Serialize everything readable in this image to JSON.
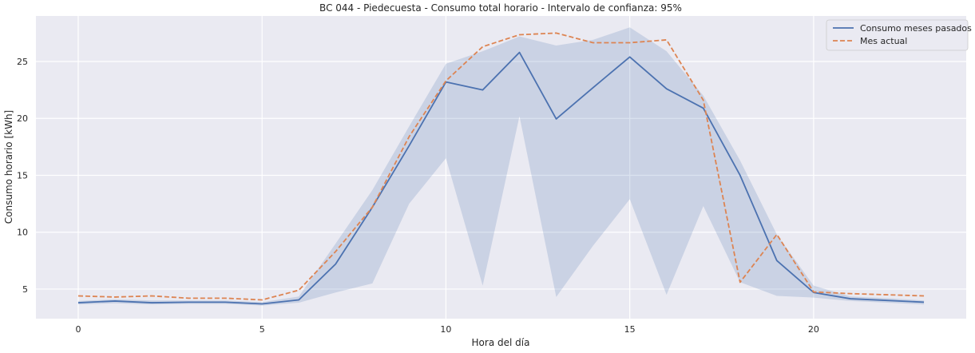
{
  "chart_data": {
    "type": "line",
    "title": "BC 044 - Piedecuesta - Consumo total horario - Intervalo de confianza: 95%",
    "xlabel": "Hora del día",
    "ylabel": "Consumo horario [kWh]",
    "xlim": [
      -1.15,
      24.15
    ],
    "ylim": [
      2.4,
      29.0
    ],
    "xticks": [
      0,
      5,
      10,
      15,
      20
    ],
    "yticks": [
      5,
      10,
      15,
      20,
      25
    ],
    "grid": true,
    "legend_position": "top-right",
    "x": [
      0,
      1,
      2,
      3,
      4,
      5,
      6,
      7,
      8,
      9,
      10,
      11,
      12,
      13,
      14,
      15,
      16,
      17,
      18,
      19,
      20,
      21,
      22,
      23
    ],
    "series": [
      {
        "name": "Consumo meses pasados",
        "color": "#4c72b0",
        "style": "solid",
        "values": [
          3.8,
          3.95,
          3.8,
          3.85,
          3.85,
          3.7,
          4.05,
          7.2,
          12.2,
          17.6,
          23.2,
          22.5,
          25.8,
          19.95,
          22.7,
          25.4,
          22.6,
          20.9,
          15.0,
          7.5,
          4.7,
          4.15,
          4.0,
          3.85
        ],
        "ci_lower": [
          3.65,
          3.75,
          3.65,
          3.7,
          3.7,
          3.55,
          3.8,
          4.7,
          5.5,
          12.5,
          16.5,
          5.3,
          20.2,
          4.3,
          8.8,
          12.9,
          4.5,
          12.3,
          5.6,
          4.4,
          4.25,
          3.95,
          3.8,
          3.65
        ],
        "ci_upper": [
          3.95,
          4.1,
          4.0,
          4.0,
          4.0,
          3.85,
          4.35,
          9.0,
          13.7,
          19.3,
          24.8,
          25.9,
          27.2,
          26.4,
          26.9,
          28.0,
          25.9,
          22.0,
          16.3,
          9.8,
          5.3,
          4.35,
          4.2,
          4.0
        ]
      },
      {
        "name": "Mes actual",
        "color": "#dd8452",
        "style": "dashed",
        "values": [
          4.4,
          4.3,
          4.4,
          4.2,
          4.2,
          4.05,
          4.9,
          8.3,
          12.2,
          18.4,
          23.3,
          26.3,
          27.35,
          27.5,
          26.65,
          26.65,
          26.9,
          21.6,
          5.6,
          9.8,
          4.75,
          4.6,
          4.5,
          4.4
        ]
      }
    ]
  }
}
